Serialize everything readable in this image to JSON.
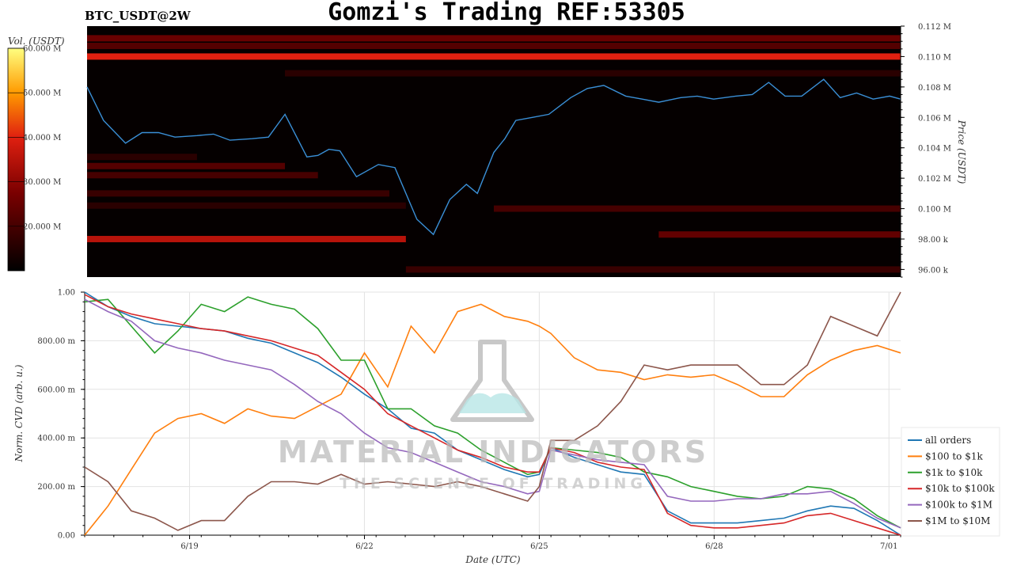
{
  "title": "Gomzi's Trading REF:53305",
  "pair": "BTC_USDT@2W",
  "watermark": {
    "name": "MATERIAL INDICATORS",
    "tagline": "THE SCIENCE OF TRADING"
  },
  "chart_data": [
    {
      "type": "heatmap",
      "title": "BTC_USDT@2W",
      "colorbar": {
        "label": "Vol. (USDT)",
        "ticks": [
          "20.000 M",
          "30.000 M",
          "40.000 M",
          "50.000 M",
          "60.000 M"
        ],
        "range": [
          10000000,
          60000000
        ]
      },
      "ylabel": "Price (USDT)",
      "y_ticks": [
        "96.00 k",
        "98.00 k",
        "0.100 M",
        "0.102 M",
        "0.104 M",
        "0.106 M",
        "0.108 M",
        "0.110 M",
        "0.112 M"
      ],
      "ylim": [
        95500,
        112000
      ],
      "price_series": {
        "name": "price",
        "x": [
          0,
          0.3,
          0.7,
          1.0,
          1.3,
          1.6,
          2.0,
          2.3,
          2.6,
          3.0,
          3.3,
          3.6,
          4.0,
          4.2,
          4.4,
          4.6,
          4.9,
          5.3,
          5.6,
          6.0,
          6.3,
          6.6,
          6.9,
          7.1,
          7.4,
          7.6,
          7.7,
          7.8,
          8.1,
          8.4,
          8.8,
          9.1,
          9.4,
          9.8,
          10.1,
          10.4,
          10.8,
          11.1,
          11.4,
          11.8,
          12.1,
          12.4,
          12.7,
          13.0,
          13.4,
          13.7,
          14.0,
          14.3,
          14.6,
          14.8
        ],
        "y": [
          108000,
          105800,
          104300,
          105000,
          105000,
          104700,
          104800,
          104900,
          104500,
          104600,
          104700,
          106200,
          103400,
          103500,
          103900,
          103800,
          102100,
          102900,
          102700,
          99300,
          98300,
          100600,
          101600,
          101000,
          103700,
          104600,
          105200,
          105800,
          106000,
          106200,
          107300,
          107900,
          108100,
          107400,
          107200,
          107000,
          107300,
          107400,
          107200,
          107400,
          107500,
          108300,
          107400,
          107400,
          108500,
          107300,
          107600,
          107200,
          107400,
          107200
        ]
      },
      "walls": [
        {
          "price": 110000,
          "x_start": 0,
          "x_end": 14.8,
          "volume": 40000000
        },
        {
          "price": 111200,
          "x_start": 0,
          "x_end": 14.8,
          "volume": 25000000
        },
        {
          "price": 110700,
          "x_start": 0,
          "x_end": 14.8,
          "volume": 22000000
        },
        {
          "price": 98000,
          "x_start": 0,
          "x_end": 5.8,
          "volume": 35000000
        },
        {
          "price": 98300,
          "x_start": 10.4,
          "x_end": 14.8,
          "volume": 24000000
        },
        {
          "price": 100000,
          "x_start": 7.4,
          "x_end": 14.8,
          "volume": 20000000
        },
        {
          "price": 96000,
          "x_start": 5.8,
          "x_end": 14.8,
          "volume": 18000000
        },
        {
          "price": 102800,
          "x_start": 0,
          "x_end": 3.6,
          "volume": 22000000
        },
        {
          "price": 102200,
          "x_start": 0,
          "x_end": 4.2,
          "volume": 20000000
        },
        {
          "price": 101000,
          "x_start": 0,
          "x_end": 5.5,
          "volume": 18000000
        },
        {
          "price": 100200,
          "x_start": 0,
          "x_end": 5.8,
          "volume": 16000000
        },
        {
          "price": 103400,
          "x_start": 0,
          "x_end": 2.0,
          "volume": 16000000
        },
        {
          "price": 108900,
          "x_start": 3.6,
          "x_end": 14.8,
          "volume": 16000000
        }
      ]
    },
    {
      "type": "line",
      "xlabel": "Date (UTC)",
      "ylabel": "Norm. CVD (arb. u.)",
      "x_ticks": [
        {
          "x": 1.8,
          "label": "6/19"
        },
        {
          "x": 4.8,
          "label": "6/22"
        },
        {
          "x": 7.8,
          "label": "6/25"
        },
        {
          "x": 10.8,
          "label": "6/28"
        },
        {
          "x": 13.8,
          "label": "7/01"
        }
      ],
      "xlim": [
        0,
        14.0
      ],
      "y_ticks": [
        "0.00",
        "200.00 m",
        "400.00 m",
        "600.00 m",
        "800.00 m",
        "1.00"
      ],
      "ylim": [
        0,
        1
      ],
      "grid": true,
      "legend_position": "bottom-right",
      "x": [
        0,
        0.4,
        0.8,
        1.2,
        1.6,
        2.0,
        2.4,
        2.8,
        3.2,
        3.6,
        4.0,
        4.4,
        4.8,
        5.2,
        5.6,
        6.0,
        6.4,
        6.8,
        7.2,
        7.6,
        7.8,
        8.0,
        8.4,
        8.8,
        9.2,
        9.6,
        10.0,
        10.4,
        10.8,
        11.2,
        11.6,
        12.0,
        12.4,
        12.8,
        13.2,
        13.6,
        14.0
      ],
      "series": [
        {
          "name": "all orders",
          "color": "#1f77b4",
          "values": [
            1.0,
            0.94,
            0.9,
            0.87,
            0.86,
            0.85,
            0.84,
            0.81,
            0.79,
            0.75,
            0.71,
            0.65,
            0.58,
            0.52,
            0.44,
            0.42,
            0.35,
            0.31,
            0.27,
            0.24,
            0.25,
            0.36,
            0.32,
            0.29,
            0.26,
            0.25,
            0.1,
            0.05,
            0.05,
            0.05,
            0.06,
            0.07,
            0.1,
            0.12,
            0.11,
            0.06,
            0.0
          ]
        },
        {
          "name": "$100 to $1k",
          "color": "#ff7f0e",
          "values": [
            0.0,
            0.12,
            0.27,
            0.42,
            0.48,
            0.5,
            0.46,
            0.52,
            0.49,
            0.48,
            0.53,
            0.58,
            0.75,
            0.61,
            0.86,
            0.75,
            0.92,
            0.95,
            0.9,
            0.88,
            0.86,
            0.83,
            0.73,
            0.68,
            0.67,
            0.64,
            0.66,
            0.65,
            0.66,
            0.62,
            0.57,
            0.57,
            0.66,
            0.72,
            0.76,
            0.78,
            0.75
          ]
        },
        {
          "name": "$1k to $10k",
          "color": "#2ca02c",
          "values": [
            0.96,
            0.97,
            0.86,
            0.75,
            0.84,
            0.95,
            0.92,
            0.98,
            0.95,
            0.93,
            0.85,
            0.72,
            0.72,
            0.52,
            0.52,
            0.45,
            0.42,
            0.35,
            0.3,
            0.25,
            0.26,
            0.36,
            0.35,
            0.34,
            0.32,
            0.26,
            0.24,
            0.2,
            0.18,
            0.16,
            0.15,
            0.16,
            0.2,
            0.19,
            0.15,
            0.08,
            0.03
          ]
        },
        {
          "name": "$10k to $100k",
          "color": "#d62728",
          "values": [
            0.99,
            0.94,
            0.91,
            0.89,
            0.87,
            0.85,
            0.84,
            0.82,
            0.8,
            0.77,
            0.74,
            0.67,
            0.6,
            0.5,
            0.45,
            0.4,
            0.35,
            0.32,
            0.28,
            0.26,
            0.26,
            0.36,
            0.34,
            0.3,
            0.28,
            0.27,
            0.09,
            0.04,
            0.03,
            0.03,
            0.04,
            0.05,
            0.08,
            0.09,
            0.06,
            0.03,
            0.0
          ]
        },
        {
          "name": "$100k to $1M",
          "color": "#9467bd",
          "values": [
            0.97,
            0.92,
            0.88,
            0.8,
            0.77,
            0.75,
            0.72,
            0.7,
            0.68,
            0.62,
            0.55,
            0.5,
            0.42,
            0.36,
            0.34,
            0.3,
            0.26,
            0.22,
            0.2,
            0.17,
            0.18,
            0.35,
            0.33,
            0.31,
            0.3,
            0.29,
            0.16,
            0.14,
            0.14,
            0.15,
            0.15,
            0.17,
            0.17,
            0.18,
            0.13,
            0.07,
            0.03
          ]
        },
        {
          "name": "$1M to $10M",
          "color": "#8c564b",
          "values": [
            0.28,
            0.22,
            0.1,
            0.07,
            0.02,
            0.06,
            0.06,
            0.16,
            0.22,
            0.22,
            0.21,
            0.25,
            0.21,
            0.22,
            0.21,
            0.2,
            0.22,
            0.2,
            0.17,
            0.14,
            0.2,
            0.39,
            0.39,
            0.45,
            0.55,
            0.7,
            0.68,
            0.7,
            0.7,
            0.7,
            0.62,
            0.62,
            0.7,
            0.9,
            0.86,
            0.82,
            1.0
          ]
        }
      ]
    }
  ]
}
